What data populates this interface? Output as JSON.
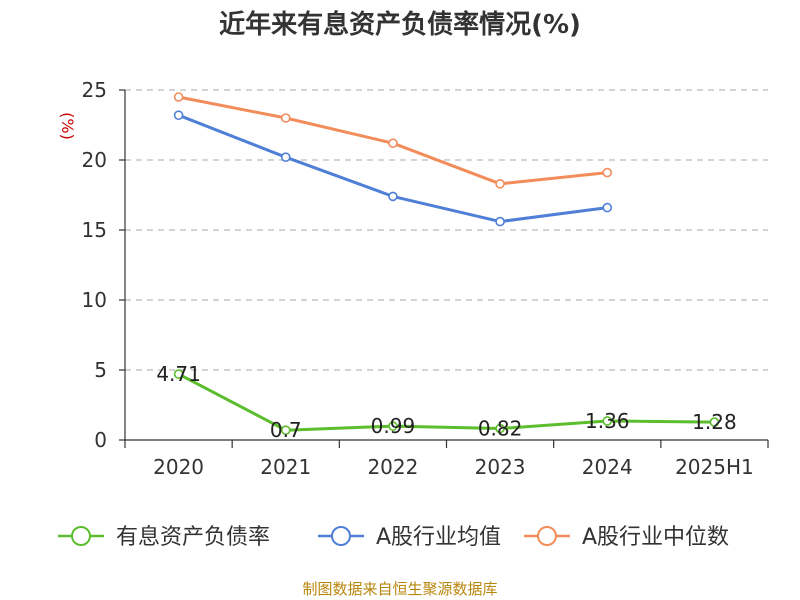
{
  "chart_data": {
    "type": "line",
    "title": "近年来有息资产负债率情况(%)",
    "ylabel": "(%)",
    "xlabel": "",
    "categories": [
      "2020",
      "2021",
      "2022",
      "2023",
      "2024",
      "2025H1"
    ],
    "ylim": [
      0,
      25
    ],
    "yticks": [
      0,
      5,
      10,
      15,
      20,
      25
    ],
    "grid": true,
    "legend_position": "bottom",
    "series": [
      {
        "name": "有息资产负债率",
        "color": "#5cbd2e",
        "values": [
          4.71,
          0.7,
          0.99,
          0.82,
          1.36,
          1.28
        ],
        "labels": [
          "4.71",
          "0.7",
          "0.99",
          "0.82",
          "1.36",
          "1.28"
        ]
      },
      {
        "name": "A股行业均值",
        "color": "#4f7fd6",
        "values": [
          23.2,
          20.2,
          17.4,
          15.6,
          16.6,
          null
        ]
      },
      {
        "name": "A股行业中位数",
        "color": "#f28c5a",
        "values": [
          24.5,
          23.0,
          21.2,
          18.3,
          19.1,
          null
        ]
      }
    ]
  },
  "source": "制图数据来自恒生聚源数据库"
}
